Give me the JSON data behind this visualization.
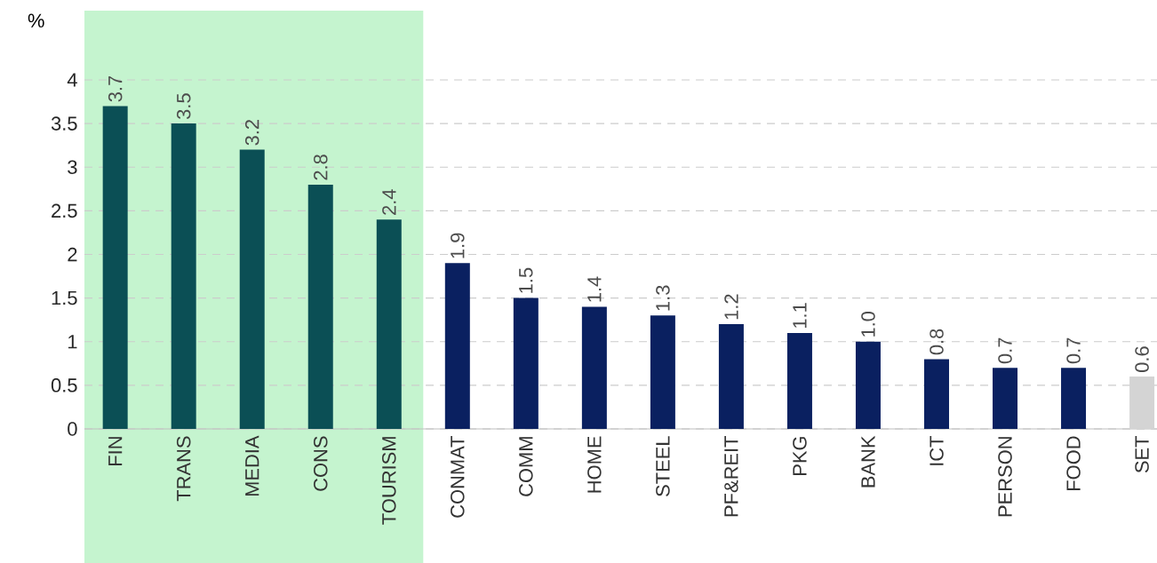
{
  "chart_data": {
    "type": "bar",
    "ylabel": "%",
    "categories": [
      "FIN",
      "TRANS",
      "MEDIA",
      "CONS",
      "TOURISM",
      "CONMAT",
      "COMM",
      "HOME",
      "STEEL",
      "PF&REIT",
      "PKG",
      "BANK",
      "ICT",
      "PERSON",
      "FOOD",
      "SET"
    ],
    "values": [
      3.7,
      3.5,
      3.2,
      2.8,
      2.4,
      1.9,
      1.5,
      1.4,
      1.3,
      1.2,
      1.1,
      1.0,
      0.8,
      0.7,
      0.7,
      0.6
    ],
    "colors": [
      "#0b4f55",
      "#0b4f55",
      "#0b4f55",
      "#0b4f55",
      "#0b4f55",
      "#0a2060",
      "#0a2060",
      "#0a2060",
      "#0a2060",
      "#0a2060",
      "#0a2060",
      "#0a2060",
      "#0a2060",
      "#0a2060",
      "#0a2060",
      "#d4d4d4"
    ],
    "ylim": [
      0,
      4
    ],
    "yticks": [
      0,
      0.5,
      1,
      1.5,
      2,
      2.5,
      3,
      3.5,
      4
    ],
    "value_labels": [
      "3.7",
      "3.5",
      "3.2",
      "2.8",
      "2.4",
      "1.9",
      "1.5",
      "1.4",
      "1.3",
      "1.2",
      "1.1",
      "1.0",
      "0.8",
      "0.7",
      "0.7",
      "0.6"
    ],
    "grid": "y",
    "bands": [
      {
        "axis": "x",
        "from": "FIN",
        "to": "TOURISM",
        "color": "#c5f4cf"
      }
    ]
  }
}
